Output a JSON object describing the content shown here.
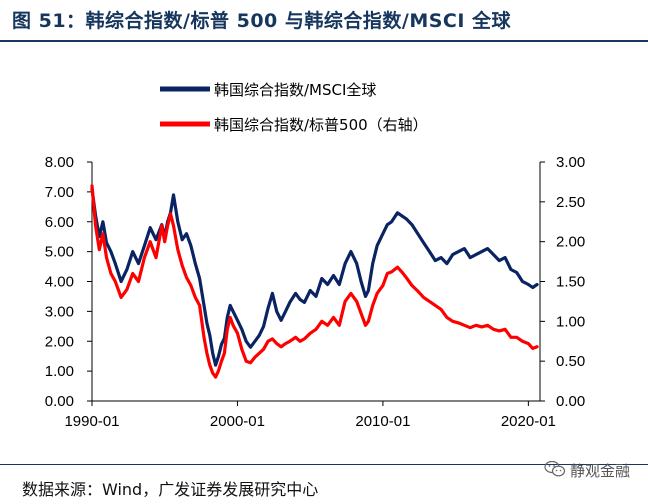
{
  "figure_title": "图 51：韩综合指数/标普 500 与韩综合指数/MSCI 全球",
  "source_note": "数据来源：Wind，广发证券发展研究中心",
  "brand": "静观金融",
  "colors": {
    "series1": "#0a2463",
    "series2": "#ff0000",
    "title": "#17365d"
  },
  "chart_data": {
    "type": "line",
    "title": "",
    "xlabel": "",
    "ylabel_left": "",
    "ylabel_right": "",
    "x_ticks": [
      "1990-01",
      "2000-01",
      "2010-01",
      "2020-01"
    ],
    "x_tick_values": [
      1990.0,
      2000.0,
      2010.0,
      2020.0
    ],
    "xlim": [
      1990.0,
      2020.8
    ],
    "ylim_left": [
      0,
      8
    ],
    "ylim_right": [
      0,
      3
    ],
    "y_ticks_left": [
      "0.00",
      "1.00",
      "2.00",
      "3.00",
      "4.00",
      "5.00",
      "6.00",
      "7.00",
      "8.00"
    ],
    "y_ticks_right": [
      "0.00",
      "0.50",
      "1.00",
      "1.50",
      "2.00",
      "2.50",
      "3.00"
    ],
    "legend_position": "top-center",
    "series": [
      {
        "name": "韩国综合指数/MSCI全球",
        "axis": "left",
        "x": [
          1990.0,
          1990.25,
          1990.5,
          1990.75,
          1991.0,
          1991.3,
          1991.6,
          1992.0,
          1992.4,
          1992.8,
          1993.2,
          1993.6,
          1994.0,
          1994.4,
          1994.8,
          1995.0,
          1995.2,
          1995.4,
          1995.6,
          1995.9,
          1996.2,
          1996.5,
          1996.8,
          1997.1,
          1997.4,
          1997.7,
          1997.9,
          1998.1,
          1998.3,
          1998.5,
          1998.7,
          1998.9,
          1999.1,
          1999.3,
          1999.5,
          1999.7,
          2000.0,
          2000.3,
          2000.6,
          2000.9,
          2001.2,
          2001.5,
          2001.8,
          2002.1,
          2002.4,
          2002.7,
          2003.0,
          2003.3,
          2003.6,
          2004.0,
          2004.3,
          2004.6,
          2005.0,
          2005.4,
          2005.8,
          2006.2,
          2006.6,
          2007.0,
          2007.4,
          2007.8,
          2008.2,
          2008.5,
          2008.8,
          2009.0,
          2009.3,
          2009.6,
          2010.0,
          2010.3,
          2010.6,
          2011.0,
          2011.3,
          2011.6,
          2012.0,
          2012.4,
          2012.8,
          2013.2,
          2013.6,
          2014.0,
          2014.4,
          2014.8,
          2015.2,
          2015.6,
          2016.0,
          2016.4,
          2016.8,
          2017.2,
          2017.6,
          2018.0,
          2018.4,
          2018.8,
          2019.2,
          2019.6,
          2020.0,
          2020.3,
          2020.6
        ],
        "values": [
          7.1,
          6.2,
          5.5,
          6.0,
          5.3,
          5.0,
          4.6,
          4.0,
          4.4,
          5.0,
          4.6,
          5.2,
          5.8,
          5.4,
          5.9,
          5.5,
          6.0,
          6.3,
          6.9,
          6.0,
          5.4,
          5.6,
          5.2,
          4.6,
          4.1,
          3.2,
          2.6,
          2.2,
          1.6,
          1.2,
          1.5,
          1.9,
          2.1,
          2.8,
          3.2,
          3.0,
          2.7,
          2.4,
          2.0,
          1.8,
          2.0,
          2.2,
          2.5,
          3.1,
          3.6,
          3.0,
          2.7,
          3.0,
          3.3,
          3.6,
          3.4,
          3.3,
          3.7,
          3.5,
          4.1,
          3.9,
          4.2,
          3.9,
          4.6,
          5.0,
          4.6,
          4.0,
          3.5,
          3.7,
          4.6,
          5.2,
          5.6,
          5.9,
          6.0,
          6.3,
          6.2,
          6.1,
          5.9,
          5.6,
          5.3,
          5.0,
          4.7,
          4.8,
          4.6,
          4.9,
          5.0,
          5.1,
          4.8,
          4.9,
          5.0,
          5.1,
          4.9,
          4.7,
          4.8,
          4.4,
          4.3,
          4.0,
          3.9,
          3.8,
          3.9
        ]
      },
      {
        "name": "韩国综合指数/标普500（右轴）",
        "axis": "right",
        "x": [
          1990.0,
          1990.25,
          1990.5,
          1990.75,
          1991.0,
          1991.3,
          1991.6,
          1992.0,
          1992.4,
          1992.8,
          1993.2,
          1993.6,
          1994.0,
          1994.4,
          1994.8,
          1995.0,
          1995.2,
          1995.4,
          1995.6,
          1995.9,
          1996.2,
          1996.5,
          1996.8,
          1997.1,
          1997.4,
          1997.7,
          1997.9,
          1998.1,
          1998.3,
          1998.5,
          1998.7,
          1998.9,
          1999.1,
          1999.3,
          1999.5,
          1999.7,
          2000.0,
          2000.3,
          2000.6,
          2000.9,
          2001.2,
          2001.5,
          2001.8,
          2002.1,
          2002.4,
          2002.7,
          2003.0,
          2003.3,
          2003.6,
          2004.0,
          2004.3,
          2004.6,
          2005.0,
          2005.4,
          2005.8,
          2006.2,
          2006.6,
          2007.0,
          2007.4,
          2007.8,
          2008.2,
          2008.5,
          2008.8,
          2009.0,
          2009.3,
          2009.6,
          2010.0,
          2010.3,
          2010.6,
          2011.0,
          2011.3,
          2011.6,
          2012.0,
          2012.4,
          2012.8,
          2013.2,
          2013.6,
          2014.0,
          2014.4,
          2014.8,
          2015.2,
          2015.6,
          2016.0,
          2016.4,
          2016.8,
          2017.2,
          2017.6,
          2018.0,
          2018.4,
          2018.8,
          2019.2,
          2019.6,
          2020.0,
          2020.3,
          2020.6
        ],
        "values": [
          2.7,
          2.2,
          1.9,
          2.1,
          1.8,
          1.6,
          1.5,
          1.3,
          1.4,
          1.6,
          1.5,
          1.8,
          2.0,
          1.8,
          2.2,
          2.0,
          2.2,
          2.35,
          2.2,
          1.9,
          1.7,
          1.55,
          1.45,
          1.3,
          1.2,
          0.8,
          0.6,
          0.45,
          0.35,
          0.3,
          0.38,
          0.5,
          0.6,
          0.9,
          1.05,
          0.95,
          0.85,
          0.65,
          0.5,
          0.48,
          0.55,
          0.6,
          0.65,
          0.75,
          0.78,
          0.72,
          0.68,
          0.72,
          0.75,
          0.8,
          0.75,
          0.78,
          0.85,
          0.9,
          1.0,
          0.95,
          1.05,
          0.95,
          1.25,
          1.35,
          1.25,
          1.1,
          0.95,
          1.0,
          1.2,
          1.35,
          1.45,
          1.6,
          1.62,
          1.68,
          1.62,
          1.55,
          1.45,
          1.38,
          1.3,
          1.25,
          1.2,
          1.15,
          1.05,
          1.0,
          0.98,
          0.95,
          0.92,
          0.95,
          0.93,
          0.95,
          0.9,
          0.88,
          0.9,
          0.8,
          0.8,
          0.75,
          0.72,
          0.66,
          0.68
        ]
      }
    ]
  }
}
